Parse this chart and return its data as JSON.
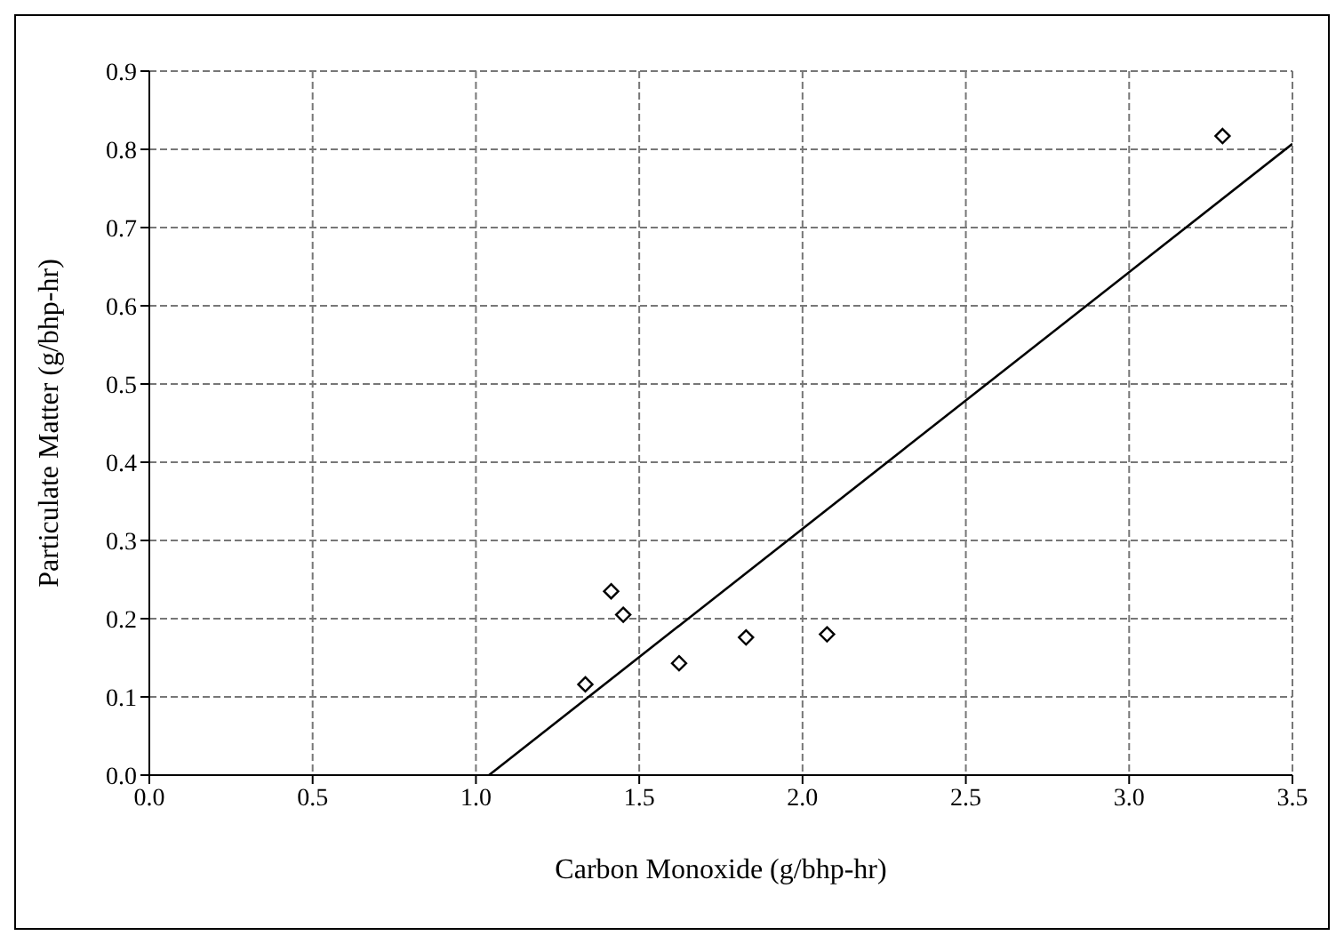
{
  "chart_data": {
    "type": "scatter",
    "xlabel": "Carbon Monoxide (g/bhp-hr)",
    "ylabel": "Particulate Matter (g/bhp-hr)",
    "xlim": [
      0,
      3.5
    ],
    "ylim": [
      0,
      0.9
    ],
    "xticks": [
      {
        "value": 0,
        "label": "0.0"
      },
      {
        "value": 0.5,
        "label": "0.5"
      },
      {
        "value": 1,
        "label": "1.0"
      },
      {
        "value": 1.5,
        "label": "1.5"
      },
      {
        "value": 2,
        "label": "2.0"
      },
      {
        "value": 2.5,
        "label": "2.5"
      },
      {
        "value": 3,
        "label": "3.0"
      },
      {
        "value": 3.5,
        "label": "3.5"
      }
    ],
    "yticks": [
      {
        "value": 0,
        "label": "0.0"
      },
      0.1,
      0.2,
      0.3,
      0.4,
      0.5,
      0.6,
      0.7,
      0.8,
      0.9
    ],
    "grid": true,
    "legend": false,
    "marker": "diamond",
    "series": [
      {
        "color": "#000000",
        "x": [
          1.335,
          1.414,
          1.451,
          1.622,
          1.827,
          2.075,
          3.286
        ],
        "values": [
          0.116,
          0.235,
          0.205,
          0.143,
          0.176,
          0.18,
          0.817
        ]
      },
      {
        "type": "line",
        "color": "#000000",
        "marker": "none",
        "line_style": "solid",
        "x": [
          1.04,
          3.5
        ],
        "values": [
          0,
          0.807
        ]
      }
    ]
  }
}
